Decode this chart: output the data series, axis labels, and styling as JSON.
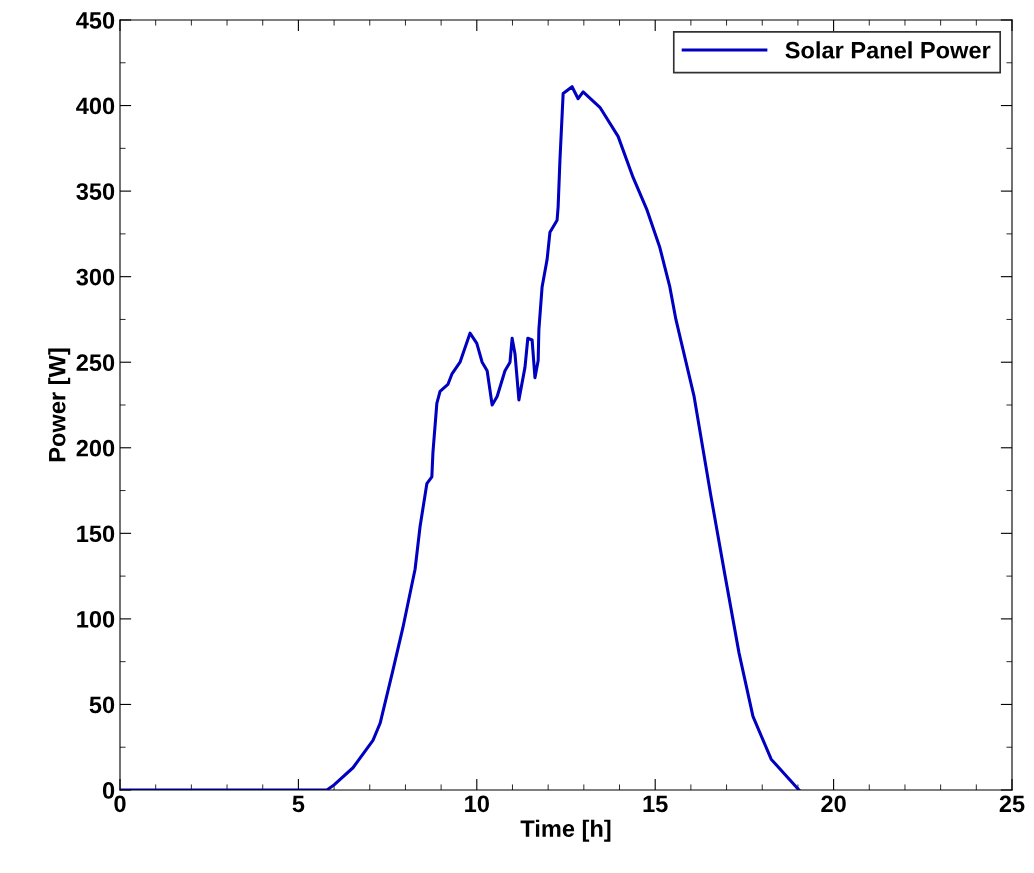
{
  "chart_data": {
    "type": "line",
    "xlabel": "Time [h]",
    "ylabel": "Power [W]",
    "xlim": [
      0,
      25
    ],
    "xticks": [
      0,
      5,
      10,
      15,
      20,
      25
    ],
    "ylim": [
      0,
      450
    ],
    "yticks": [
      0,
      50,
      100,
      150,
      200,
      250,
      300,
      350,
      400,
      450
    ],
    "grid": false,
    "legend": "top right",
    "marker": "none",
    "line_style": "solid",
    "series": [
      {
        "name": "Solar Panel Power",
        "color": "#0000c0",
        "x": [
          0,
          5.8,
          6.0,
          6.53,
          7.09,
          7.29,
          7.65,
          7.93,
          8.27,
          8.41,
          8.6,
          8.74,
          8.77,
          8.88,
          8.97,
          9.19,
          9.3,
          9.53,
          9.81,
          10.0,
          10.15,
          10.29,
          10.43,
          10.57,
          10.79,
          10.93,
          10.99,
          11.07,
          11.18,
          11.35,
          11.43,
          11.55,
          11.63,
          11.72,
          11.74,
          11.83,
          11.97,
          12.05,
          12.25,
          12.28,
          12.33,
          12.42,
          12.67,
          12.84,
          12.98,
          13.45,
          13.96,
          14.38,
          14.77,
          15.13,
          15.41,
          15.58,
          16.09,
          16.56,
          16.96,
          17.35,
          17.74,
          18.25,
          19.03
        ],
        "values": [
          0,
          0,
          3,
          13,
          29,
          39,
          70,
          95,
          129,
          154,
          179,
          183,
          197,
          226,
          233,
          237,
          243,
          250,
          267,
          261,
          250,
          245,
          225,
          230,
          245,
          250,
          264,
          255,
          228,
          247,
          264,
          263,
          241,
          251,
          269,
          294,
          310,
          326,
          333,
          341,
          368,
          407,
          411,
          404,
          408,
          399,
          382,
          358,
          339,
          317,
          294,
          275,
          230,
          172,
          125,
          80,
          43,
          18,
          0
        ]
      }
    ]
  }
}
